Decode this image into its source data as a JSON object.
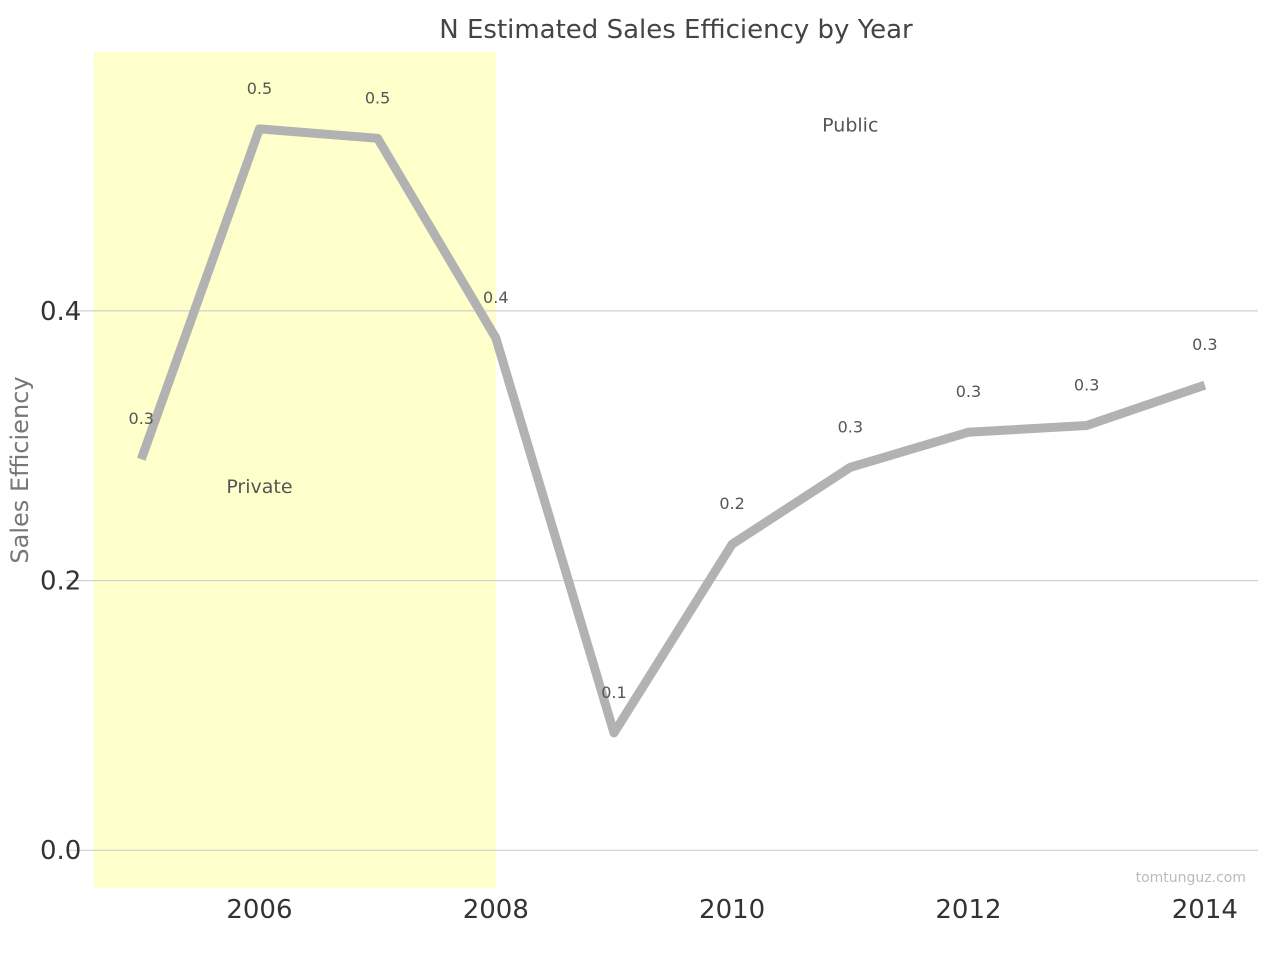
{
  "chart_data": {
    "type": "line",
    "title": "N Estimated Sales Efficiency by Year",
    "ylabel": "Sales Efficiency",
    "xlabel": "",
    "x": [
      2005,
      2006,
      2007,
      2008,
      2009,
      2010,
      2011,
      2012,
      2013,
      2014
    ],
    "values": [
      0.29,
      0.535,
      0.528,
      0.38,
      0.087,
      0.227,
      0.284,
      0.31,
      0.315,
      0.345
    ],
    "data_labels": [
      "0.3",
      "0.5",
      "0.5",
      "0.4",
      "0.1",
      "0.2",
      "0.3",
      "0.3",
      "0.3",
      "0.3"
    ],
    "xlim": [
      2004.6,
      2014.45
    ],
    "ylim": [
      -0.028,
      0.592
    ],
    "x_ticks": [
      2006,
      2008,
      2010,
      2012,
      2014
    ],
    "x_tick_labels": [
      "2006",
      "2008",
      "2010",
      "2012",
      "2014"
    ],
    "y_ticks": [
      0.0,
      0.2,
      0.4
    ],
    "y_tick_labels": [
      "0.0",
      "0.2",
      "0.4"
    ],
    "grid": "horizontal",
    "highlight_region": {
      "x_start": 2004.6,
      "x_end": 2008,
      "label": "Private",
      "color": "#ffffcc"
    },
    "annotations": [
      {
        "text": "Private",
        "x": 2006,
        "y": 0.265
      },
      {
        "text": "Public",
        "x": 2011,
        "y": 0.533
      }
    ],
    "line_color": "#b2b2b2",
    "credit": "tomtunguz.com"
  }
}
